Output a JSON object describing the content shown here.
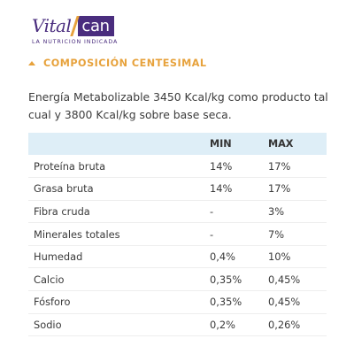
{
  "brand": {
    "logo_text_left": "Vital",
    "logo_text_right": "can",
    "tagline": "LA NUTRICION INDICADA",
    "primary_color": "#4a2d7e",
    "accent_color": "#e7a23c"
  },
  "section": {
    "icon": "chevron-up-icon",
    "title": "COMPOSICIÓN CENTESIMAL"
  },
  "energy_text": "Energía Metabolizable 3450 Kcal/kg como producto tal cual y 3800 Kcal/kg sobre base seca.",
  "table": {
    "header_bg": "#deeef7",
    "columns": [
      "",
      "MIN",
      "MAX"
    ],
    "rows": [
      {
        "name": "Proteína bruta",
        "min": "14%",
        "max": "17%"
      },
      {
        "name": "Grasa bruta",
        "min": "14%",
        "max": "17%"
      },
      {
        "name": "Fibra cruda",
        "min": "-",
        "max": "3%"
      },
      {
        "name": "Minerales totales",
        "min": "-",
        "max": "7%"
      },
      {
        "name": "Humedad",
        "min": "0,4%",
        "max": "10%"
      },
      {
        "name": "Calcio",
        "min": "0,35%",
        "max": "0,45%"
      },
      {
        "name": "Fósforo",
        "min": "0,35%",
        "max": "0,45%"
      },
      {
        "name": "Sodio",
        "min": "0,2%",
        "max": "0,26%"
      }
    ]
  }
}
